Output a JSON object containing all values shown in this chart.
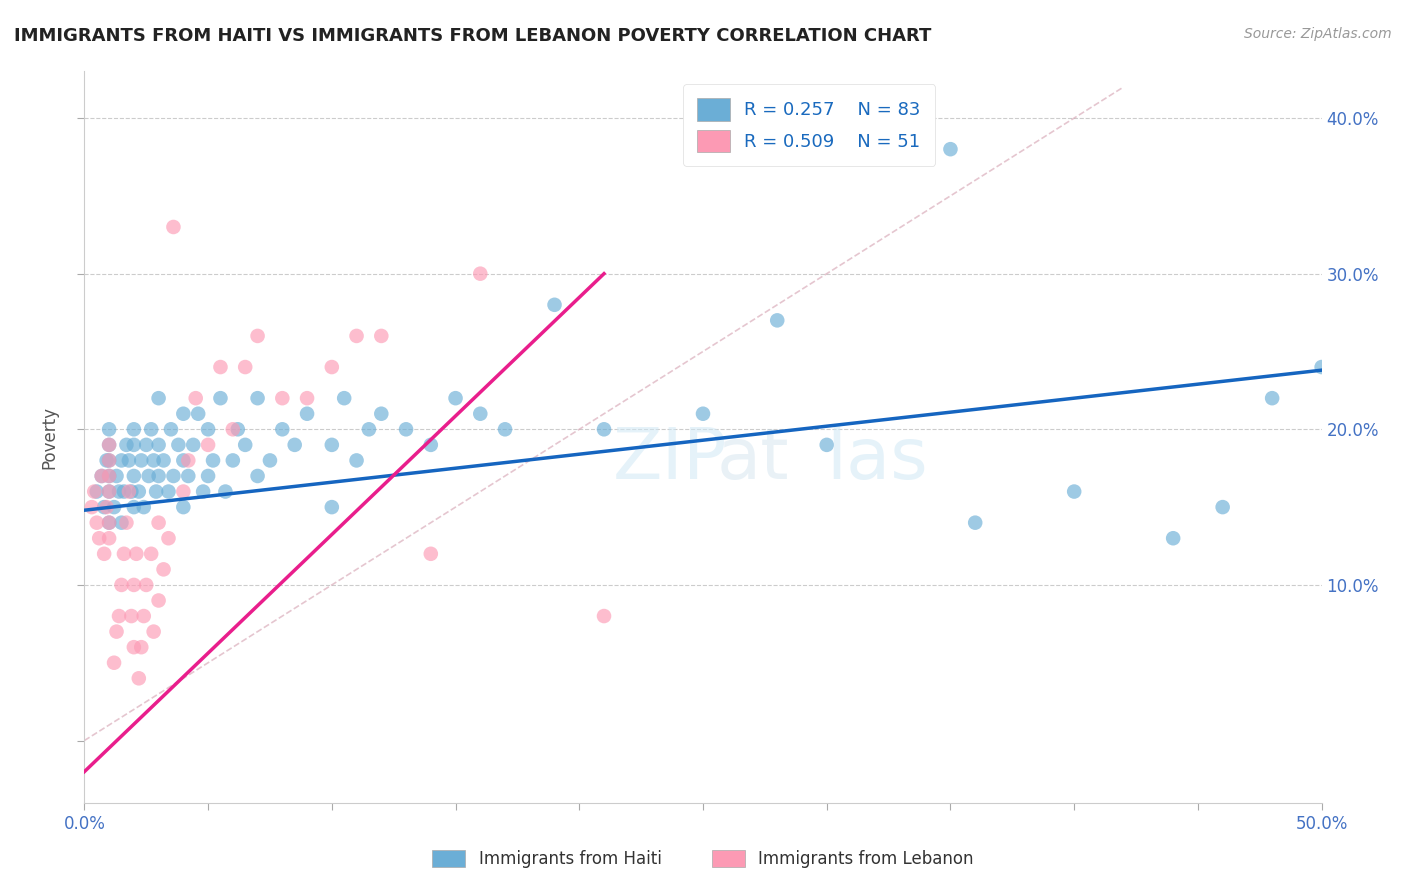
{
  "title": "IMMIGRANTS FROM HAITI VS IMMIGRANTS FROM LEBANON POVERTY CORRELATION CHART",
  "source": "Source: ZipAtlas.com",
  "ylabel": "Poverty",
  "xlim": [
    0.0,
    0.5
  ],
  "ylim": [
    -0.04,
    0.43
  ],
  "ytick_positions": [
    0.0,
    0.1,
    0.2,
    0.3,
    0.4
  ],
  "ytick_labels_right": [
    "",
    "10.0%",
    "20.0%",
    "30.0%",
    "40.0%"
  ],
  "xtick_positions": [
    0.0,
    0.05,
    0.1,
    0.15,
    0.2,
    0.25,
    0.3,
    0.35,
    0.4,
    0.45,
    0.5
  ],
  "xtick_labels": [
    "0.0%",
    "",
    "",
    "",
    "",
    "",
    "",
    "",
    "",
    "",
    "50.0%"
  ],
  "haiti_color": "#6baed6",
  "lebanon_color": "#fc9ab4",
  "haiti_line_color": "#1565c0",
  "lebanon_line_color": "#e91e8c",
  "haiti_R": 0.257,
  "haiti_N": 83,
  "lebanon_R": 0.509,
  "lebanon_N": 51,
  "legend_label_haiti": "Immigrants from Haiti",
  "legend_label_lebanon": "Immigrants from Lebanon",
  "haiti_line_x": [
    0.0,
    0.5
  ],
  "haiti_line_y": [
    0.148,
    0.238
  ],
  "lebanon_line_x": [
    0.0,
    0.21
  ],
  "lebanon_line_y": [
    -0.02,
    0.3
  ],
  "ref_line_x": [
    0.0,
    0.42
  ],
  "ref_line_y": [
    0.0,
    0.42
  ],
  "haiti_scatter_x": [
    0.005,
    0.007,
    0.008,
    0.009,
    0.01,
    0.01,
    0.01,
    0.01,
    0.01,
    0.01,
    0.012,
    0.013,
    0.014,
    0.015,
    0.015,
    0.016,
    0.017,
    0.018,
    0.019,
    0.02,
    0.02,
    0.02,
    0.02,
    0.022,
    0.023,
    0.024,
    0.025,
    0.026,
    0.027,
    0.028,
    0.029,
    0.03,
    0.03,
    0.03,
    0.032,
    0.034,
    0.035,
    0.036,
    0.038,
    0.04,
    0.04,
    0.04,
    0.042,
    0.044,
    0.046,
    0.048,
    0.05,
    0.05,
    0.052,
    0.055,
    0.057,
    0.06,
    0.062,
    0.065,
    0.07,
    0.07,
    0.075,
    0.08,
    0.085,
    0.09,
    0.1,
    0.1,
    0.105,
    0.11,
    0.115,
    0.12,
    0.13,
    0.14,
    0.15,
    0.16,
    0.17,
    0.19,
    0.21,
    0.25,
    0.28,
    0.3,
    0.35,
    0.36,
    0.4,
    0.44,
    0.46,
    0.48,
    0.5
  ],
  "haiti_scatter_y": [
    0.16,
    0.17,
    0.15,
    0.18,
    0.14,
    0.16,
    0.17,
    0.18,
    0.19,
    0.2,
    0.15,
    0.17,
    0.16,
    0.14,
    0.18,
    0.16,
    0.19,
    0.18,
    0.16,
    0.15,
    0.17,
    0.19,
    0.2,
    0.16,
    0.18,
    0.15,
    0.19,
    0.17,
    0.2,
    0.18,
    0.16,
    0.17,
    0.19,
    0.22,
    0.18,
    0.16,
    0.2,
    0.17,
    0.19,
    0.15,
    0.18,
    0.21,
    0.17,
    0.19,
    0.21,
    0.16,
    0.17,
    0.2,
    0.18,
    0.22,
    0.16,
    0.18,
    0.2,
    0.19,
    0.17,
    0.22,
    0.18,
    0.2,
    0.19,
    0.21,
    0.15,
    0.19,
    0.22,
    0.18,
    0.2,
    0.21,
    0.2,
    0.19,
    0.22,
    0.21,
    0.2,
    0.28,
    0.2,
    0.21,
    0.27,
    0.19,
    0.38,
    0.14,
    0.16,
    0.13,
    0.15,
    0.22,
    0.24
  ],
  "lebanon_scatter_x": [
    0.003,
    0.004,
    0.005,
    0.006,
    0.007,
    0.008,
    0.009,
    0.01,
    0.01,
    0.01,
    0.01,
    0.01,
    0.01,
    0.012,
    0.013,
    0.014,
    0.015,
    0.016,
    0.017,
    0.018,
    0.019,
    0.02,
    0.02,
    0.021,
    0.022,
    0.023,
    0.024,
    0.025,
    0.027,
    0.028,
    0.03,
    0.03,
    0.032,
    0.034,
    0.036,
    0.04,
    0.042,
    0.045,
    0.05,
    0.055,
    0.06,
    0.065,
    0.07,
    0.08,
    0.09,
    0.1,
    0.11,
    0.12,
    0.14,
    0.16,
    0.21
  ],
  "lebanon_scatter_y": [
    0.15,
    0.16,
    0.14,
    0.13,
    0.17,
    0.12,
    0.15,
    0.16,
    0.17,
    0.18,
    0.19,
    0.14,
    0.13,
    0.05,
    0.07,
    0.08,
    0.1,
    0.12,
    0.14,
    0.16,
    0.08,
    0.06,
    0.1,
    0.12,
    0.04,
    0.06,
    0.08,
    0.1,
    0.12,
    0.07,
    0.09,
    0.14,
    0.11,
    0.13,
    0.33,
    0.16,
    0.18,
    0.22,
    0.19,
    0.24,
    0.2,
    0.24,
    0.26,
    0.22,
    0.22,
    0.24,
    0.26,
    0.26,
    0.12,
    0.3,
    0.08
  ]
}
